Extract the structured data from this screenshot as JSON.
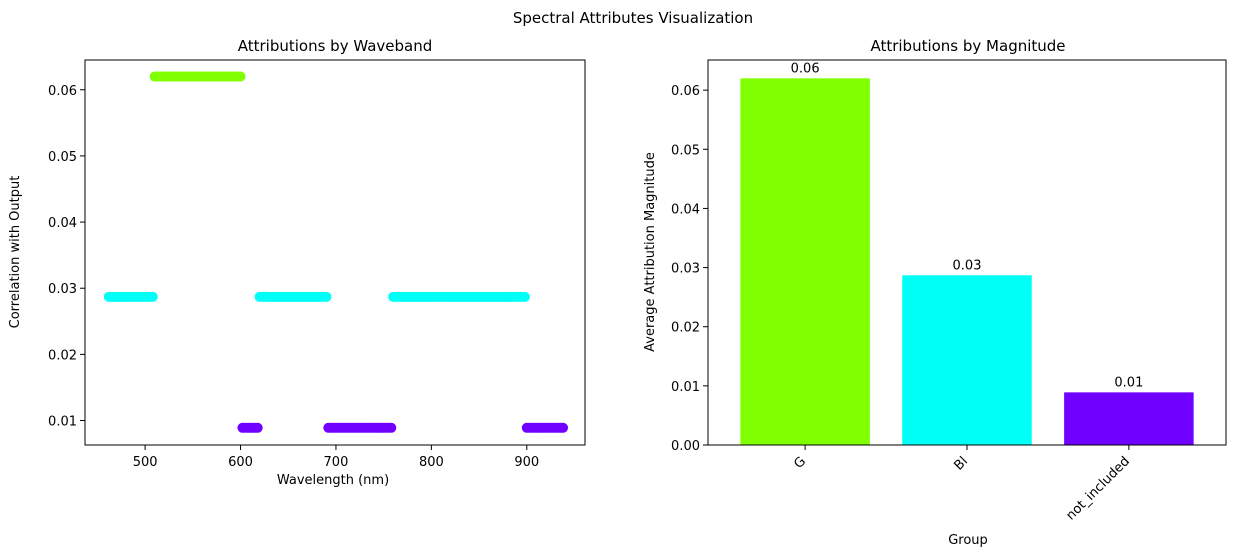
{
  "figure": {
    "suptitle": "Spectral Attributes Visualization"
  },
  "chart_data": [
    {
      "type": "scatter",
      "title": "Attributions by Waveband",
      "xlabel": "Wavelength (nm)",
      "ylabel": "Correlation with Output",
      "xlim": [
        437,
        961
      ],
      "ylim": [
        0.0063,
        0.0645
      ],
      "xticks": [
        "500",
        "600",
        "700",
        "800",
        "900"
      ],
      "yticks": [
        "0.01",
        "0.02",
        "0.03",
        "0.04",
        "0.05",
        "0.06"
      ],
      "grid": false,
      "segments": [
        {
          "group": "Bl",
          "x_start": 462,
          "x_end": 508,
          "y": 0.0287,
          "color": "#00FFF6"
        },
        {
          "group": "G",
          "x_start": 510,
          "x_end": 600,
          "y": 0.062,
          "color": "#80FF00"
        },
        {
          "group": "not_included",
          "x_start": 602,
          "x_end": 618,
          "y": 0.0089,
          "color": "#7000FF"
        },
        {
          "group": "Bl",
          "x_start": 620,
          "x_end": 690,
          "y": 0.0287,
          "color": "#00FFF6"
        },
        {
          "group": "not_included",
          "x_start": 692,
          "x_end": 758,
          "y": 0.0089,
          "color": "#7000FF"
        },
        {
          "group": "Bl",
          "x_start": 760,
          "x_end": 898,
          "y": 0.0287,
          "color": "#00FFF6"
        },
        {
          "group": "not_included",
          "x_start": 900,
          "x_end": 938,
          "y": 0.0089,
          "color": "#7000FF"
        }
      ]
    },
    {
      "type": "bar",
      "title": "Attributions by Magnitude",
      "xlabel": "Group",
      "ylabel": "Average Attribution Magnitude",
      "ylim": [
        0,
        0.0651
      ],
      "categories": [
        "G",
        "Bl",
        "not_included"
      ],
      "values": [
        0.062,
        0.0287,
        0.0089
      ],
      "value_labels": [
        "0.06",
        "0.03",
        "0.01"
      ],
      "colors": [
        "#80FF00",
        "#00FFF6",
        "#7000FF"
      ],
      "yticks": [
        "0.00",
        "0.01",
        "0.02",
        "0.03",
        "0.04",
        "0.05",
        "0.06"
      ],
      "xtick_rotation": 45,
      "grid": false
    }
  ]
}
